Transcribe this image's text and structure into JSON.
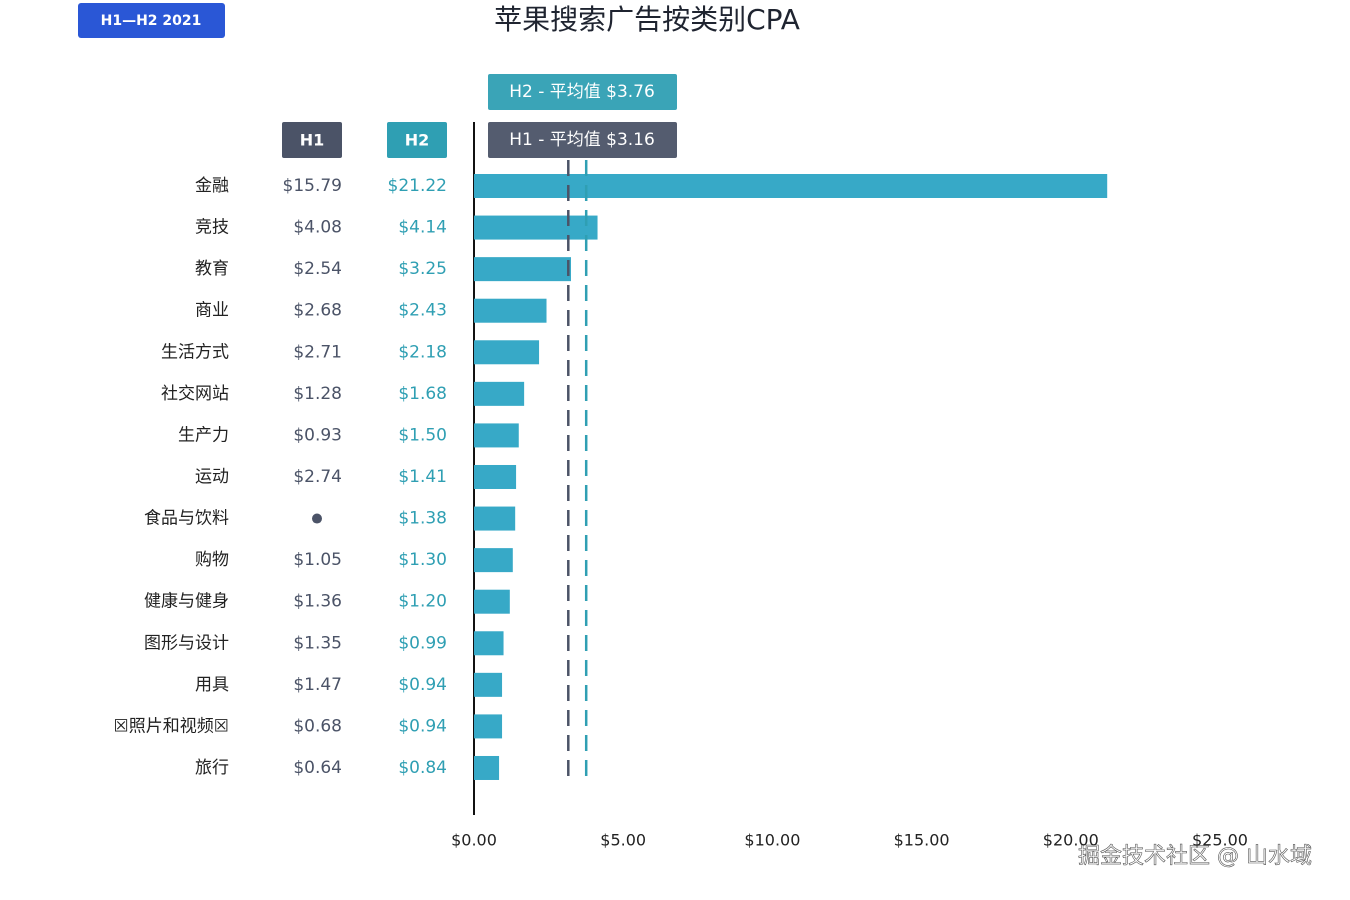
{
  "badge": "H1—H2 2021",
  "watermark": "掘金技术社区 @ 山水域",
  "chart_data": {
    "type": "bar",
    "orientation": "horizontal",
    "title": "苹果搜索广告按类别CPA",
    "categories": [
      "金融",
      "竞技",
      "教育",
      "商业",
      "生活方式",
      "社交网站",
      "生产力",
      "运动",
      "食品与饮料",
      "购物",
      "健康与健身",
      "图形与设计",
      "用具",
      "☒照片和视频☒",
      "旅行"
    ],
    "series": [
      {
        "name": "H1",
        "color": "#4b5367",
        "bars": false,
        "values": [
          15.79,
          4.08,
          2.54,
          2.68,
          2.71,
          1.28,
          0.93,
          2.74,
          null,
          1.05,
          1.36,
          1.35,
          1.47,
          0.68,
          0.64
        ],
        "value_labels": [
          "$15.79",
          "$4.08",
          "$2.54",
          "$2.68",
          "$2.71",
          "$1.28",
          "$0.93",
          "$2.74",
          null,
          "$1.05",
          "$1.36",
          "$1.35",
          "$1.47",
          "$0.68",
          "$0.64"
        ]
      },
      {
        "name": "H2",
        "color": "#2f9fb3",
        "bars": true,
        "bar_color": "#37a9c7",
        "values": [
          21.22,
          4.14,
          3.25,
          2.43,
          2.18,
          1.68,
          1.5,
          1.41,
          1.38,
          1.3,
          1.2,
          0.99,
          0.94,
          0.94,
          0.84
        ],
        "value_labels": [
          "$21.22",
          "$4.14",
          "$3.25",
          "$2.43",
          "$2.18",
          "$1.68",
          "$1.50",
          "$1.41",
          "$1.38",
          "$1.30",
          "$1.20",
          "$0.99",
          "$0.94",
          "$0.94",
          "$0.84"
        ]
      }
    ],
    "reference_lines": [
      {
        "series": "H2",
        "value": 3.76,
        "label": "H2 - 平均值 $3.76",
        "color": "#2f9fb3"
      },
      {
        "series": "H1",
        "value": 3.16,
        "label": "H1 - 平均值 $3.16",
        "color": "#4b5367"
      }
    ],
    "xlim": [
      0,
      25
    ],
    "xticks": [
      {
        "value": 0,
        "label": "$0.00"
      },
      {
        "value": 5,
        "label": "$5.00"
      },
      {
        "value": 10,
        "label": "$10.00"
      },
      {
        "value": 15,
        "label": "$15.00"
      },
      {
        "value": 20,
        "label": "$20.00"
      },
      {
        "value": 25,
        "label": "$25.00"
      }
    ],
    "grid": false
  }
}
